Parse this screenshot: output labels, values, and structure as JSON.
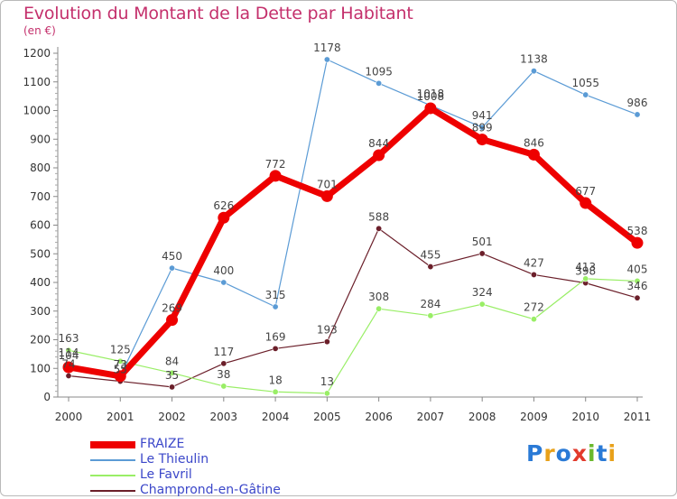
{
  "title": "Evolution du Montant de la Dette par Habitant",
  "unit_label": "(en €)",
  "logo_text": "Proxiti",
  "chart_data": {
    "type": "line",
    "categories": [
      "2000",
      "2001",
      "2002",
      "2003",
      "2004",
      "2005",
      "2006",
      "2007",
      "2008",
      "2009",
      "2010",
      "2011"
    ],
    "ylim": [
      0,
      1200
    ],
    "y_ticks": [
      0,
      100,
      200,
      300,
      400,
      500,
      600,
      700,
      800,
      900,
      1000,
      1100,
      1200
    ],
    "grid": false,
    "legend_position": "bottom-left",
    "series": [
      {
        "name": "FRAIZE",
        "color": "#ee0000",
        "values": [
          104,
          73,
          269,
          626,
          772,
          701,
          844,
          1008,
          899,
          846,
          677,
          538
        ],
        "labels": [
          "104",
          "73",
          "269",
          "626",
          "772",
          "701",
          "844",
          "1008",
          "899",
          "846",
          "677",
          "538"
        ]
      },
      {
        "name": "Le Thieulin",
        "color": "#5b9bd5",
        "values": [
          114,
          73,
          450,
          400,
          315,
          1178,
          1095,
          1018,
          941,
          1138,
          1055,
          986
        ],
        "labels": [
          "114",
          "73",
          "450",
          "400",
          "315",
          "1178",
          "1095",
          "1018",
          "941",
          "1138",
          "1055",
          "986"
        ]
      },
      {
        "name": "Le Favril",
        "color": "#99ee66",
        "values": [
          163,
          125,
          84,
          38,
          18,
          13,
          308,
          284,
          324,
          272,
          413,
          405
        ],
        "labels": [
          "163",
          "125",
          "84",
          "38",
          "18",
          "13",
          "308",
          "284",
          "324",
          "272",
          "413",
          "405"
        ]
      },
      {
        "name": "Champrond-en-Gâtine",
        "color": "#6b1f2a",
        "values": [
          74,
          55,
          35,
          117,
          169,
          193,
          588,
          455,
          501,
          427,
          398,
          346
        ],
        "labels": [
          "74",
          "55",
          "35",
          "117",
          "169",
          "193",
          "588",
          "455",
          "501",
          "427",
          "398",
          "346"
        ]
      }
    ]
  }
}
